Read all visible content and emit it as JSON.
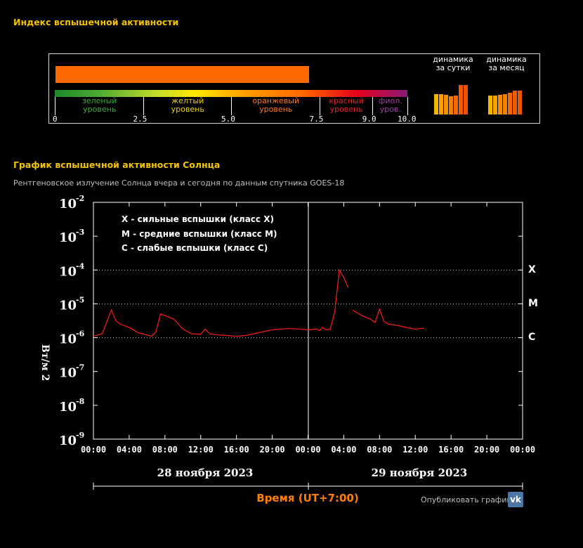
{
  "header": {
    "index_title": "Индекс вспышечной активности",
    "chart_title": "График вспышечной активности Солнца",
    "chart_subtitle": "Рентгеновское излучение Солнца вчера и сегодня по данным спутника GOES-18"
  },
  "index": {
    "value": 7.2,
    "max": 10.0,
    "bar_color": "#ff6a00",
    "levels": [
      {
        "line1": "зеленый",
        "line2": "уровень",
        "color": "#3fae3f",
        "from": 0,
        "to": 2.5
      },
      {
        "line1": "желтый",
        "line2": "уровень",
        "color": "#f2d600",
        "from": 2.5,
        "to": 5.0
      },
      {
        "line1": "оранжевый",
        "line2": "уровень",
        "color": "#ff7a1a",
        "from": 5.0,
        "to": 7.5
      },
      {
        "line1": "красный",
        "line2": "уровень",
        "color": "#e8222a",
        "from": 7.5,
        "to": 9.0
      },
      {
        "line1": "фиол.",
        "line2": "уров.",
        "color": "#a040a0",
        "from": 9.0,
        "to": 10.0
      }
    ],
    "ticks": [
      "0",
      "2.5",
      "5.0",
      "7.5",
      "9.0",
      "10.0"
    ],
    "dynamics_day_label_1": "динамика",
    "dynamics_day_label_2": "за сутки",
    "dynamics_month_label_1": "динамика",
    "dynamics_month_label_2": "за месяц",
    "dynamics_day": [
      0.7,
      0.7,
      0.67,
      0.62,
      0.65,
      1.0,
      1.0
    ],
    "dynamics_month": [
      0.65,
      0.65,
      0.67,
      0.7,
      0.73,
      0.8,
      0.82
    ],
    "dynamics_colors": [
      "#f5b400",
      "#f5a000",
      "#f39000",
      "#f28000",
      "#f06a00",
      "#ee5c00",
      "#ec5200"
    ]
  },
  "legend": {
    "x": "X  - сильные вспышки (класс X)",
    "m": "M  - средние вспышки (класс M)",
    "c": "C  - слабые вспышки (класс C)"
  },
  "class_labels": {
    "x": "X",
    "m": "M",
    "c": "C"
  },
  "dates": {
    "day1": "28 ноября 2023",
    "day2": "29 ноября 2023"
  },
  "xlabel": "Время (UT+7:00)",
  "publish_label": "Опубликовать график:",
  "vk_label": "vk",
  "chart_data": {
    "type": "line",
    "ylabel": "Вт/м 2",
    "yscale": "log",
    "ylim": [
      1e-09,
      0.01
    ],
    "y_tick_exponents": [
      "-2",
      "-3",
      "-4",
      "-5",
      "-6",
      "-7",
      "-8",
      "-9"
    ],
    "xlim": [
      0,
      48
    ],
    "x_tick_labels": [
      "00:00",
      "04:00",
      "08:00",
      "12:00",
      "16:00",
      "20:00",
      "00:00",
      "04:00",
      "08:00",
      "12:00",
      "16:00",
      "20:00",
      "00:00"
    ],
    "line_color": "#ff1a1a",
    "series": [
      {
        "x": [
          0,
          1,
          1.5,
          2,
          2.5,
          3,
          4,
          5,
          6,
          6.5,
          7,
          7.5,
          8,
          9,
          10,
          11,
          12,
          12.5,
          13,
          14,
          15,
          16,
          17,
          18,
          19,
          20,
          21,
          22,
          23,
          24,
          25,
          25.3,
          25.6,
          26,
          26.5,
          27,
          27.5,
          28,
          28.5
        ],
        "y": [
          1.1e-06,
          1.3e-06,
          3e-06,
          6.5e-06,
          3.2e-06,
          2.5e-06,
          2e-06,
          1.4e-06,
          1.2e-06,
          1.1e-06,
          1.5e-06,
          5e-06,
          4.5e-06,
          3.5e-06,
          1.8e-06,
          1.3e-06,
          1.25e-06,
          1.8e-06,
          1.3e-06,
          1.2e-06,
          1.15e-06,
          1.1e-06,
          1.15e-06,
          1.3e-06,
          1.5e-06,
          1.7e-06,
          1.8e-06,
          1.85e-06,
          1.8e-06,
          1.7e-06,
          1.8e-06,
          1.6e-06,
          2e-06,
          1.7e-06,
          1.8e-06,
          6e-06,
          0.0001,
          6e-05,
          3e-05
        ]
      },
      {
        "x": [
          29,
          30,
          31,
          31.5,
          32,
          32.5,
          33,
          34,
          35,
          36,
          37
        ],
        "y": [
          6.5e-06,
          4.5e-06,
          3.5e-06,
          2.8e-06,
          7e-06,
          3e-06,
          2.5e-06,
          2.3e-06,
          2e-06,
          1.8e-06,
          1.9e-06
        ]
      }
    ],
    "reference_lines": [
      0.0001,
      1e-05,
      1e-06
    ],
    "grid": false
  }
}
